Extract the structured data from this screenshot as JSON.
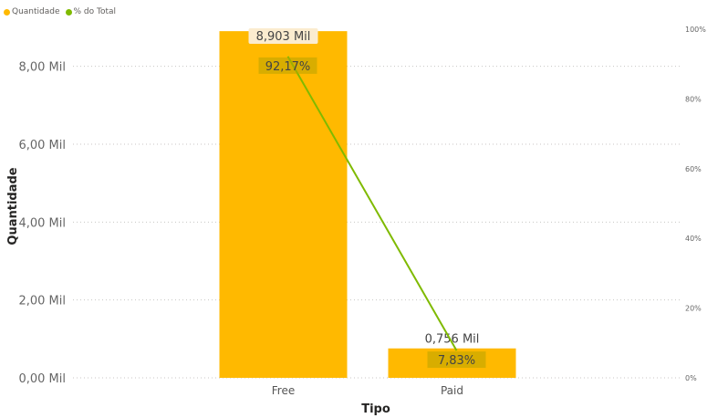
{
  "legend": [
    {
      "label": "Quantidade",
      "color": "#FFB900"
    },
    {
      "label": "% do Total",
      "color": "#7FBA00"
    }
  ],
  "chart_data": {
    "type": "bar",
    "categories": [
      "Free",
      "Paid"
    ],
    "series": [
      {
        "name": "Quantidade",
        "type": "bar",
        "axis": "left",
        "values": [
          8.903,
          0.756
        ],
        "labels": [
          "8,903 Mil",
          "0,756 Mil"
        ],
        "color": "#FFB900"
      },
      {
        "name": "% do Total",
        "type": "line",
        "axis": "right",
        "values": [
          92.17,
          7.83
        ],
        "labels": [
          "92,17%",
          "7,83%"
        ],
        "color": "#7FBA00"
      }
    ],
    "xlabel": "Tipo",
    "ylabel": "Quantidade",
    "ylim": [
      0,
      9
    ],
    "y_ticks": [
      0,
      2,
      4,
      6,
      8
    ],
    "y_tick_labels": [
      "0,00 Mil",
      "2,00 Mil",
      "4,00 Mil",
      "6,00 Mil",
      "8,00 Mil"
    ],
    "y2lim": [
      0,
      100
    ],
    "y2_ticks": [
      0,
      20,
      40,
      60,
      80,
      100
    ],
    "y2_tick_labels": [
      "0%",
      "20%",
      "40%",
      "60%",
      "80%",
      "100%"
    ],
    "grid": true,
    "legend_position": "top-left"
  }
}
